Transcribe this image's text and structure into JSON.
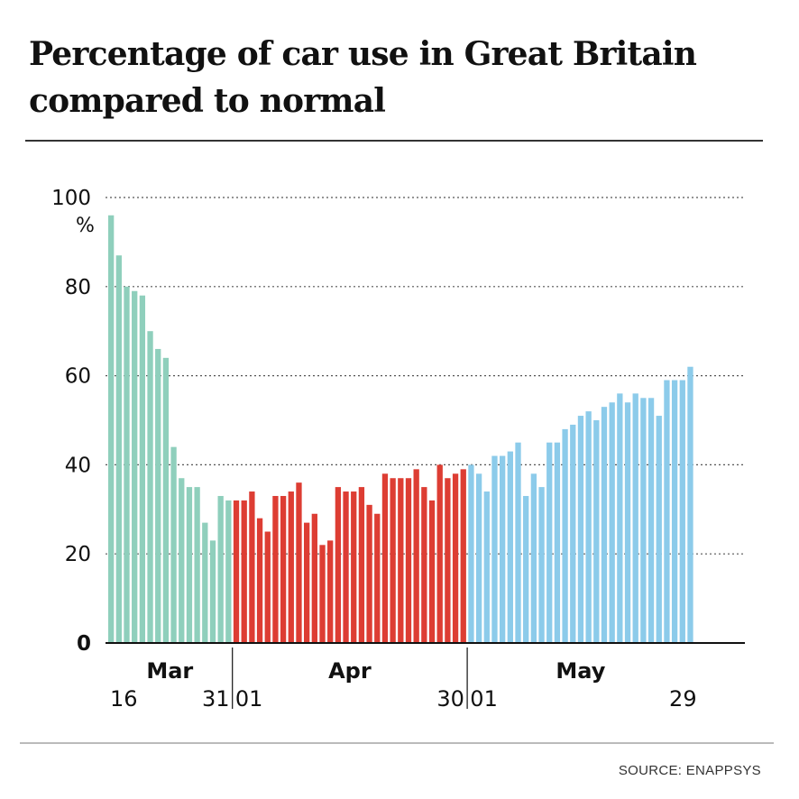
{
  "title": "Percentage of car use in Great Britain compared to normal",
  "source": "SOURCE: ENAPPSYS",
  "colors": {
    "mar": "#8fcfbc",
    "apr": "#dd3d33",
    "may": "#8ccbea",
    "grid": "#555555",
    "axis": "#111111"
  },
  "chart_data": {
    "type": "bar",
    "title": "Percentage of car use in Great Britain compared to normal",
    "xlabel": "",
    "ylabel": "",
    "unit": "%",
    "ylim": [
      0,
      100
    ],
    "yticks": [
      0,
      20,
      40,
      60,
      80,
      100
    ],
    "ytick_labels": [
      "0",
      "20",
      "40",
      "60",
      "80",
      "100"
    ],
    "grid": "horizontal dotted",
    "series": [
      {
        "month": "Mar",
        "first_day_label": "16",
        "last_day_label": "31",
        "color": "#8fcfbc",
        "values": [
          96,
          87,
          80,
          79,
          78,
          70,
          66,
          64,
          44,
          37,
          35,
          35,
          27,
          23,
          33,
          32
        ]
      },
      {
        "month": "Apr",
        "first_day_label": "01",
        "last_day_label": "30",
        "color": "#dd3d33",
        "values": [
          32,
          32,
          34,
          28,
          25,
          33,
          33,
          34,
          36,
          27,
          29,
          22,
          23,
          35,
          34,
          34,
          35,
          31,
          29,
          38,
          37,
          37,
          37,
          39,
          35,
          32,
          40,
          37,
          38,
          39
        ]
      },
      {
        "month": "May",
        "first_day_label": "01",
        "last_day_label": "29",
        "color": "#8ccbea",
        "values": [
          40,
          38,
          34,
          42,
          42,
          43,
          45,
          33,
          38,
          35,
          45,
          45,
          48,
          49,
          51,
          52,
          50,
          53,
          54,
          56,
          54,
          56,
          55,
          55,
          51,
          59,
          59,
          59,
          62
        ]
      }
    ]
  }
}
